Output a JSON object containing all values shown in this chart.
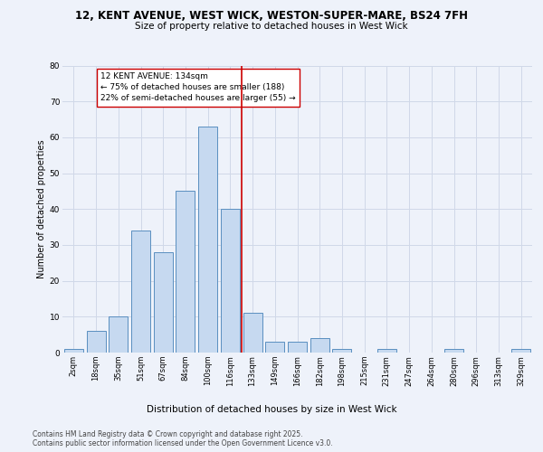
{
  "title_line1": "12, KENT AVENUE, WEST WICK, WESTON-SUPER-MARE, BS24 7FH",
  "title_line2": "Size of property relative to detached houses in West Wick",
  "xlabel": "Distribution of detached houses by size in West Wick",
  "ylabel": "Number of detached properties",
  "categories": [
    "2sqm",
    "18sqm",
    "35sqm",
    "51sqm",
    "67sqm",
    "84sqm",
    "100sqm",
    "116sqm",
    "133sqm",
    "149sqm",
    "166sqm",
    "182sqm",
    "198sqm",
    "215sqm",
    "231sqm",
    "247sqm",
    "264sqm",
    "280sqm",
    "296sqm",
    "313sqm",
    "329sqm"
  ],
  "values": [
    1,
    6,
    10,
    34,
    28,
    45,
    63,
    40,
    11,
    3,
    3,
    4,
    1,
    0,
    1,
    0,
    0,
    1,
    0,
    0,
    1
  ],
  "bar_color": "#c6d9f0",
  "bar_edge_color": "#5a8fc0",
  "vline_color": "#cc0000",
  "annotation_text": "12 KENT AVENUE: 134sqm\n← 75% of detached houses are smaller (188)\n22% of semi-detached houses are larger (55) →",
  "annotation_box_color": "#ffffff",
  "annotation_box_edge": "#cc0000",
  "ylim": [
    0,
    80
  ],
  "yticks": [
    0,
    10,
    20,
    30,
    40,
    50,
    60,
    70,
    80
  ],
  "grid_color": "#d0d8e8",
  "footer_text": "Contains HM Land Registry data © Crown copyright and database right 2025.\nContains public sector information licensed under the Open Government Licence v3.0.",
  "bg_color": "#eef2fa",
  "title1_fontsize": 8.5,
  "title2_fontsize": 7.5,
  "ylabel_fontsize": 7.0,
  "xlabel_fontsize": 7.5,
  "tick_fontsize": 6.0,
  "annot_fontsize": 6.5,
  "footer_fontsize": 5.5
}
